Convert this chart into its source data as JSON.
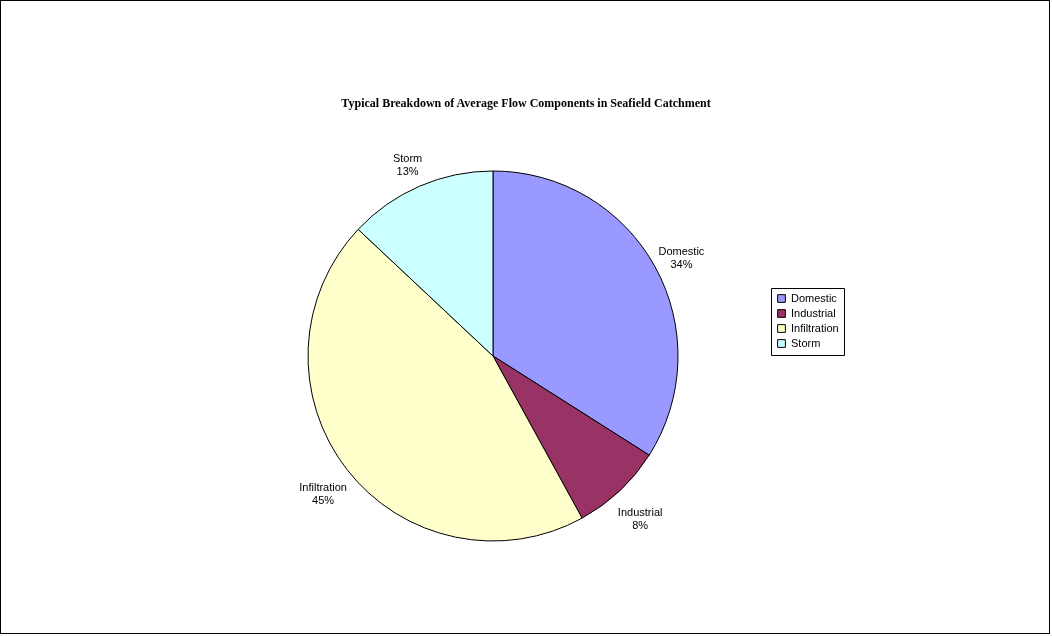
{
  "chart_data": {
    "type": "pie",
    "title": "Typical Breakdown of Average Flow Components in Seafield Catchment",
    "categories": [
      "Domestic",
      "Industrial",
      "Infiltration",
      "Storm"
    ],
    "values": [
      34,
      8,
      45,
      13
    ],
    "colors": [
      "#9999ff",
      "#993366",
      "#ffffcc",
      "#ccffff"
    ],
    "data_labels": true,
    "value_labels": [
      "34%",
      "8%",
      "45%",
      "13%"
    ],
    "legend": "right"
  }
}
